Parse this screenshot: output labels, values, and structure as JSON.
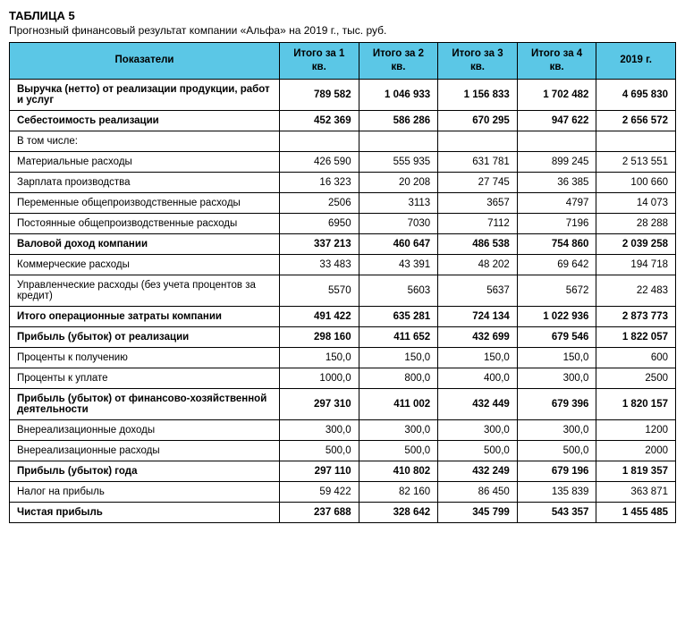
{
  "title": "ТАБЛИЦА 5",
  "subtitle": "Прогнозный финансовый результат компании «Альфа» на 2019 г., тыс. руб.",
  "table": {
    "header_bg": "#5bc7e6",
    "border_color": "#000000",
    "columns": [
      "Показатели",
      "Итого за 1 кв.",
      "Итого за 2 кв.",
      "Итого за 3 кв.",
      "Итого за 4 кв.",
      "2019 г."
    ],
    "rows": [
      {
        "bold": true,
        "label": "Выручка (нетто) от реализации продукции, работ и услуг",
        "cells": [
          "789 582",
          "1 046 933",
          "1 156 833",
          "1 702 482",
          "4 695 830"
        ]
      },
      {
        "bold": true,
        "label": "Себестоимость реализации",
        "cells": [
          "452 369",
          "586 286",
          "670 295",
          "947 622",
          "2 656 572"
        ]
      },
      {
        "bold": false,
        "label": "В том числе:",
        "cells": [
          "",
          "",
          "",
          "",
          ""
        ]
      },
      {
        "bold": false,
        "label": "Материальные расходы",
        "cells": [
          "426 590",
          "555 935",
          "631 781",
          "899 245",
          "2 513 551"
        ]
      },
      {
        "bold": false,
        "label": "Зарплата производства",
        "cells": [
          "16 323",
          "20 208",
          "27 745",
          "36 385",
          "100 660"
        ]
      },
      {
        "bold": false,
        "label": "Переменные общепроизводственные расходы",
        "cells": [
          "2506",
          "3113",
          "3657",
          "4797",
          "14 073"
        ]
      },
      {
        "bold": false,
        "label": "Постоянные общепроизводственные расходы",
        "cells": [
          "6950",
          "7030",
          "7112",
          "7196",
          "28 288"
        ]
      },
      {
        "bold": true,
        "label": "Валовой доход компании",
        "cells": [
          "337 213",
          "460 647",
          "486 538",
          "754 860",
          "2 039 258"
        ]
      },
      {
        "bold": false,
        "label": "Коммерческие расходы",
        "cells": [
          "33 483",
          "43 391",
          "48 202",
          "69 642",
          "194 718"
        ]
      },
      {
        "bold": false,
        "label": "Управленческие расходы (без учета процентов за кредит)",
        "cells": [
          "5570",
          "5603",
          "5637",
          "5672",
          "22 483"
        ]
      },
      {
        "bold": true,
        "label": "Итого операционные затраты компании",
        "cells": [
          "491 422",
          "635 281",
          "724 134",
          "1 022 936",
          "2 873 773"
        ]
      },
      {
        "bold": true,
        "label": "Прибыль (убыток) от реализации",
        "cells": [
          "298 160",
          "411 652",
          "432 699",
          "679 546",
          "1 822 057"
        ]
      },
      {
        "bold": false,
        "label": "Проценты к получению",
        "cells": [
          "150,0",
          "150,0",
          "150,0",
          "150,0",
          "600"
        ]
      },
      {
        "bold": false,
        "label": "Проценты к уплате",
        "cells": [
          "1000,0",
          "800,0",
          "400,0",
          "300,0",
          "2500"
        ]
      },
      {
        "bold": true,
        "label": "Прибыль (убыток) от финансово-хозяйственной деятельности",
        "cells": [
          "297 310",
          "411 002",
          "432 449",
          "679 396",
          "1 820 157"
        ]
      },
      {
        "bold": false,
        "label": "Внереализационные доходы",
        "cells": [
          "300,0",
          "300,0",
          "300,0",
          "300,0",
          "1200"
        ]
      },
      {
        "bold": false,
        "label": "Внереализационные расходы",
        "cells": [
          "500,0",
          "500,0",
          "500,0",
          "500,0",
          "2000"
        ]
      },
      {
        "bold": true,
        "label": "Прибыль (убыток) года",
        "cells": [
          "297 110",
          "410 802",
          "432 249",
          "679 196",
          "1 819 357"
        ]
      },
      {
        "bold": false,
        "label": "Налог на прибыль",
        "cells": [
          "59 422",
          "82 160",
          "86 450",
          "135 839",
          "363 871"
        ]
      },
      {
        "bold": true,
        "label": "Чистая прибыль",
        "cells": [
          "237 688",
          "328 642",
          "345 799",
          "543 357",
          "1 455 485"
        ]
      }
    ]
  }
}
